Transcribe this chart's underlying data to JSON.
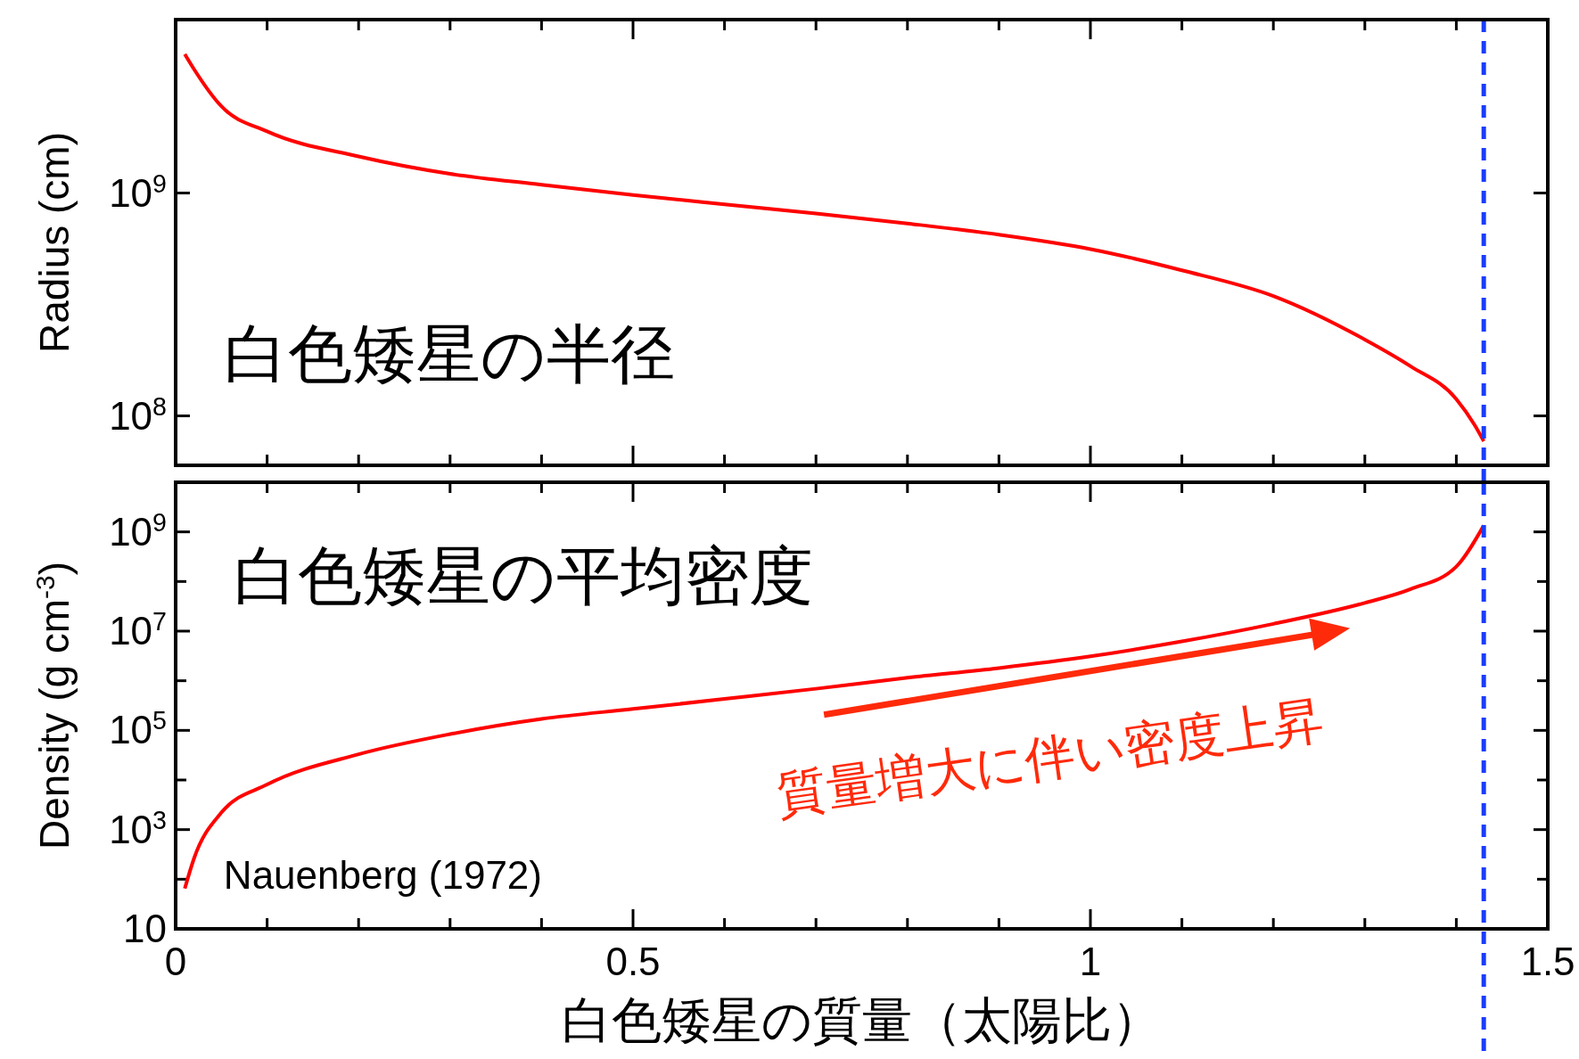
{
  "chart_data": [
    {
      "type": "line",
      "ylabel": "Radius (cm)",
      "log": "y",
      "tick_labels": "y",
      "grid": false,
      "legend": false,
      "marker": "none",
      "line_style": "solid",
      "annotations": [
        "白色矮星の半径"
      ],
      "xlim": [
        0,
        1.5
      ],
      "xticks": [
        0,
        {
          "value": 0.1,
          "label": null
        },
        {
          "value": 0.2,
          "label": null
        },
        {
          "value": 0.3,
          "label": null
        },
        {
          "value": 0.4,
          "label": null
        },
        0.5,
        {
          "value": 0.6,
          "label": null
        },
        {
          "value": 0.7,
          "label": null
        },
        {
          "value": 0.8,
          "label": null
        },
        {
          "value": 0.9,
          "label": null
        },
        1,
        {
          "value": 1.1,
          "label": null
        },
        {
          "value": 1.2,
          "label": null
        },
        {
          "value": 1.3,
          "label": null
        },
        {
          "value": 1.4,
          "label": null
        },
        1.5
      ],
      "ylim": [
        60000000,
        6000000000
      ],
      "yticks": [
        {
          "value": 100000000,
          "label": "10$^{8}$"
        },
        {
          "value": 1000000000,
          "label": "10$^{9}$"
        }
      ],
      "ref_lines": [
        {
          "axis": "x",
          "value": 1.43,
          "label": null,
          "color": "#1a3cff",
          "line_style": "dashed"
        }
      ],
      "x": [
        0.01,
        0.02,
        0.05,
        0.1,
        0.2,
        0.3,
        0.4,
        0.5,
        0.6,
        0.7,
        0.8,
        0.9,
        1.0,
        1.1,
        1.2,
        1.3,
        1.35,
        1.4,
        1.42,
        1.43
      ],
      "series": [
        {
          "color": "#ff0000",
          "values": [
            4200000000,
            3600000000,
            2450000000,
            1890000000,
            1460000000,
            1220000000,
            1090000000,
            980000000,
            890000000,
            810000000,
            730000000,
            650000000,
            560000000,
            450000000,
            345000000,
            220000000,
            167000000,
            119000000,
            91000000,
            77000000
          ]
        }
      ]
    },
    {
      "type": "line",
      "ylabel": "Density (g cm$^{-3}$)",
      "xlabel": "白色矮星の質量（太陽比）",
      "log": "y",
      "grid": false,
      "legend": false,
      "marker": "none",
      "line_style": "solid",
      "annotations": [
        "白色矮星の平均密度",
        "Nauenberg (1972)",
        "質量増大に伴い密度上昇"
      ],
      "xlim": [
        0,
        1.5
      ],
      "xticks": [
        0,
        {
          "value": 0.1,
          "label": null
        },
        {
          "value": 0.2,
          "label": null
        },
        {
          "value": 0.3,
          "label": null
        },
        {
          "value": 0.4,
          "label": null
        },
        0.5,
        {
          "value": 0.6,
          "label": null
        },
        {
          "value": 0.7,
          "label": null
        },
        {
          "value": 0.8,
          "label": null
        },
        {
          "value": 0.9,
          "label": null
        },
        1,
        {
          "value": 1.1,
          "label": null
        },
        {
          "value": 1.2,
          "label": null
        },
        {
          "value": 1.3,
          "label": null
        },
        {
          "value": 1.4,
          "label": null
        },
        1.5
      ],
      "ylim": [
        10,
        10000000000
      ],
      "yticks": [
        10,
        {
          "value": 100,
          "label": null
        },
        {
          "value": 1000,
          "label": "10$^{3}$"
        },
        {
          "value": 10000,
          "label": null
        },
        {
          "value": 100000,
          "label": "10$^{5}$"
        },
        {
          "value": 1000000,
          "label": null
        },
        {
          "value": 10000000,
          "label": "10$^{7}$"
        },
        {
          "value": 100000000,
          "label": null
        },
        {
          "value": 1000000000,
          "label": "10$^{9}$"
        }
      ],
      "ref_lines": [
        {
          "axis": "x",
          "value": 1.43,
          "label": null,
          "color": "#1a3cff",
          "line_style": "dashed"
        }
      ],
      "x": [
        0.01,
        0.02,
        0.05,
        0.1,
        0.2,
        0.3,
        0.4,
        0.5,
        0.6,
        0.7,
        0.8,
        0.9,
        1.0,
        1.1,
        1.2,
        1.3,
        1.35,
        1.4,
        1.43
      ],
      "series": [
        {
          "color": "#ff0000",
          "values": [
            65,
            260,
            2200,
            8100,
            33000,
            84000,
            170000,
            270000,
            430000,
            690000,
            1150000,
            1800000,
            3100000,
            6200000,
            14000000,
            37000000,
            70000000,
            200000000,
            1350000000
          ]
        }
      ]
    }
  ]
}
